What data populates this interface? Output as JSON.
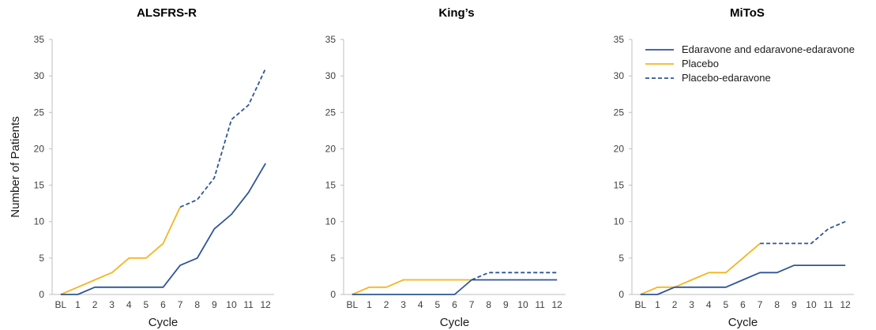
{
  "chart_data": [
    {
      "type": "line",
      "title": "ALSFRS-R",
      "xlabel": "Cycle",
      "ylabel": "Number of Patients",
      "categories": [
        "BL",
        "1",
        "2",
        "3",
        "4",
        "5",
        "6",
        "7",
        "8",
        "9",
        "10",
        "11",
        "12"
      ],
      "ylim": [
        0,
        35
      ],
      "yticks": [
        "0",
        "5",
        "10",
        "15",
        "20",
        "25",
        "30",
        "35"
      ],
      "grid": false,
      "series": [
        {
          "name": "Edaravone and edaravone-edaravone",
          "color": "#2e5597",
          "dash": false,
          "points": [
            [
              "BL",
              0
            ],
            [
              "1",
              0
            ],
            [
              "2",
              1
            ],
            [
              "3",
              1
            ],
            [
              "4",
              1
            ],
            [
              "5",
              1
            ],
            [
              "6",
              1
            ],
            [
              "7",
              4
            ],
            [
              "8",
              5
            ],
            [
              "9",
              9
            ],
            [
              "10",
              11
            ],
            [
              "11",
              14
            ],
            [
              "12",
              18
            ]
          ]
        },
        {
          "name": "Placebo",
          "color": "#f5b51f",
          "dash": false,
          "points": [
            [
              "BL",
              0
            ],
            [
              "1",
              1
            ],
            [
              "2",
              2
            ],
            [
              "3",
              3
            ],
            [
              "4",
              5
            ],
            [
              "5",
              5
            ],
            [
              "6",
              7
            ],
            [
              "7",
              12
            ]
          ]
        },
        {
          "name": "Placebo-edaravone",
          "color": "#2e5597",
          "dash": true,
          "points": [
            [
              "7",
              12
            ],
            [
              "8",
              13
            ],
            [
              "9",
              16
            ],
            [
              "10",
              24
            ],
            [
              "11",
              26
            ],
            [
              "12",
              31
            ]
          ]
        }
      ]
    },
    {
      "type": "line",
      "title": "King’s",
      "xlabel": "Cycle",
      "ylabel": "",
      "categories": [
        "BL",
        "1",
        "2",
        "3",
        "4",
        "5",
        "6",
        "7",
        "8",
        "9",
        "10",
        "11",
        "12"
      ],
      "ylim": [
        0,
        35
      ],
      "yticks": [
        "0",
        "5",
        "10",
        "15",
        "20",
        "25",
        "30",
        "35"
      ],
      "grid": false,
      "series": [
        {
          "name": "Edaravone and edaravone-edaravone",
          "color": "#2e5597",
          "dash": false,
          "points": [
            [
              "BL",
              0
            ],
            [
              "1",
              0
            ],
            [
              "2",
              0
            ],
            [
              "3",
              0
            ],
            [
              "4",
              0
            ],
            [
              "5",
              0
            ],
            [
              "6",
              0
            ],
            [
              "7",
              2
            ],
            [
              "8",
              2
            ],
            [
              "9",
              2
            ],
            [
              "10",
              2
            ],
            [
              "11",
              2
            ],
            [
              "12",
              2
            ]
          ]
        },
        {
          "name": "Placebo",
          "color": "#f5b51f",
          "dash": false,
          "points": [
            [
              "BL",
              0
            ],
            [
              "1",
              1
            ],
            [
              "2",
              1
            ],
            [
              "3",
              2
            ],
            [
              "4",
              2
            ],
            [
              "5",
              2
            ],
            [
              "6",
              2
            ],
            [
              "7",
              2
            ]
          ]
        },
        {
          "name": "Placebo-edaravone",
          "color": "#2e5597",
          "dash": true,
          "points": [
            [
              "7",
              2
            ],
            [
              "8",
              3
            ],
            [
              "9",
              3
            ],
            [
              "10",
              3
            ],
            [
              "11",
              3
            ],
            [
              "12",
              3
            ]
          ]
        }
      ]
    },
    {
      "type": "line",
      "title": "MiToS",
      "xlabel": "Cycle",
      "ylabel": "",
      "categories": [
        "BL",
        "1",
        "2",
        "3",
        "4",
        "5",
        "6",
        "7",
        "8",
        "9",
        "10",
        "11",
        "12"
      ],
      "ylim": [
        0,
        35
      ],
      "yticks": [
        "0",
        "5",
        "10",
        "15",
        "20",
        "25",
        "30",
        "35"
      ],
      "grid": false,
      "legend": "top-right",
      "series": [
        {
          "name": "Edaravone and edaravone-edaravone",
          "color": "#2e5597",
          "dash": false,
          "points": [
            [
              "BL",
              0
            ],
            [
              "1",
              0
            ],
            [
              "2",
              1
            ],
            [
              "3",
              1
            ],
            [
              "4",
              1
            ],
            [
              "5",
              1
            ],
            [
              "6",
              2
            ],
            [
              "7",
              3
            ],
            [
              "8",
              3
            ],
            [
              "9",
              4
            ],
            [
              "10",
              4
            ],
            [
              "11",
              4
            ],
            [
              "12",
              4
            ]
          ]
        },
        {
          "name": "Placebo",
          "color": "#f5b51f",
          "dash": false,
          "points": [
            [
              "BL",
              0
            ],
            [
              "1",
              1
            ],
            [
              "2",
              1
            ],
            [
              "3",
              2
            ],
            [
              "4",
              3
            ],
            [
              "5",
              3
            ],
            [
              "6",
              5
            ],
            [
              "7",
              7
            ]
          ]
        },
        {
          "name": "Placebo-edaravone",
          "color": "#2e5597",
          "dash": true,
          "points": [
            [
              "7",
              7
            ],
            [
              "8",
              7
            ],
            [
              "9",
              7
            ],
            [
              "10",
              7
            ],
            [
              "11",
              9
            ],
            [
              "12",
              10
            ]
          ]
        }
      ]
    }
  ]
}
